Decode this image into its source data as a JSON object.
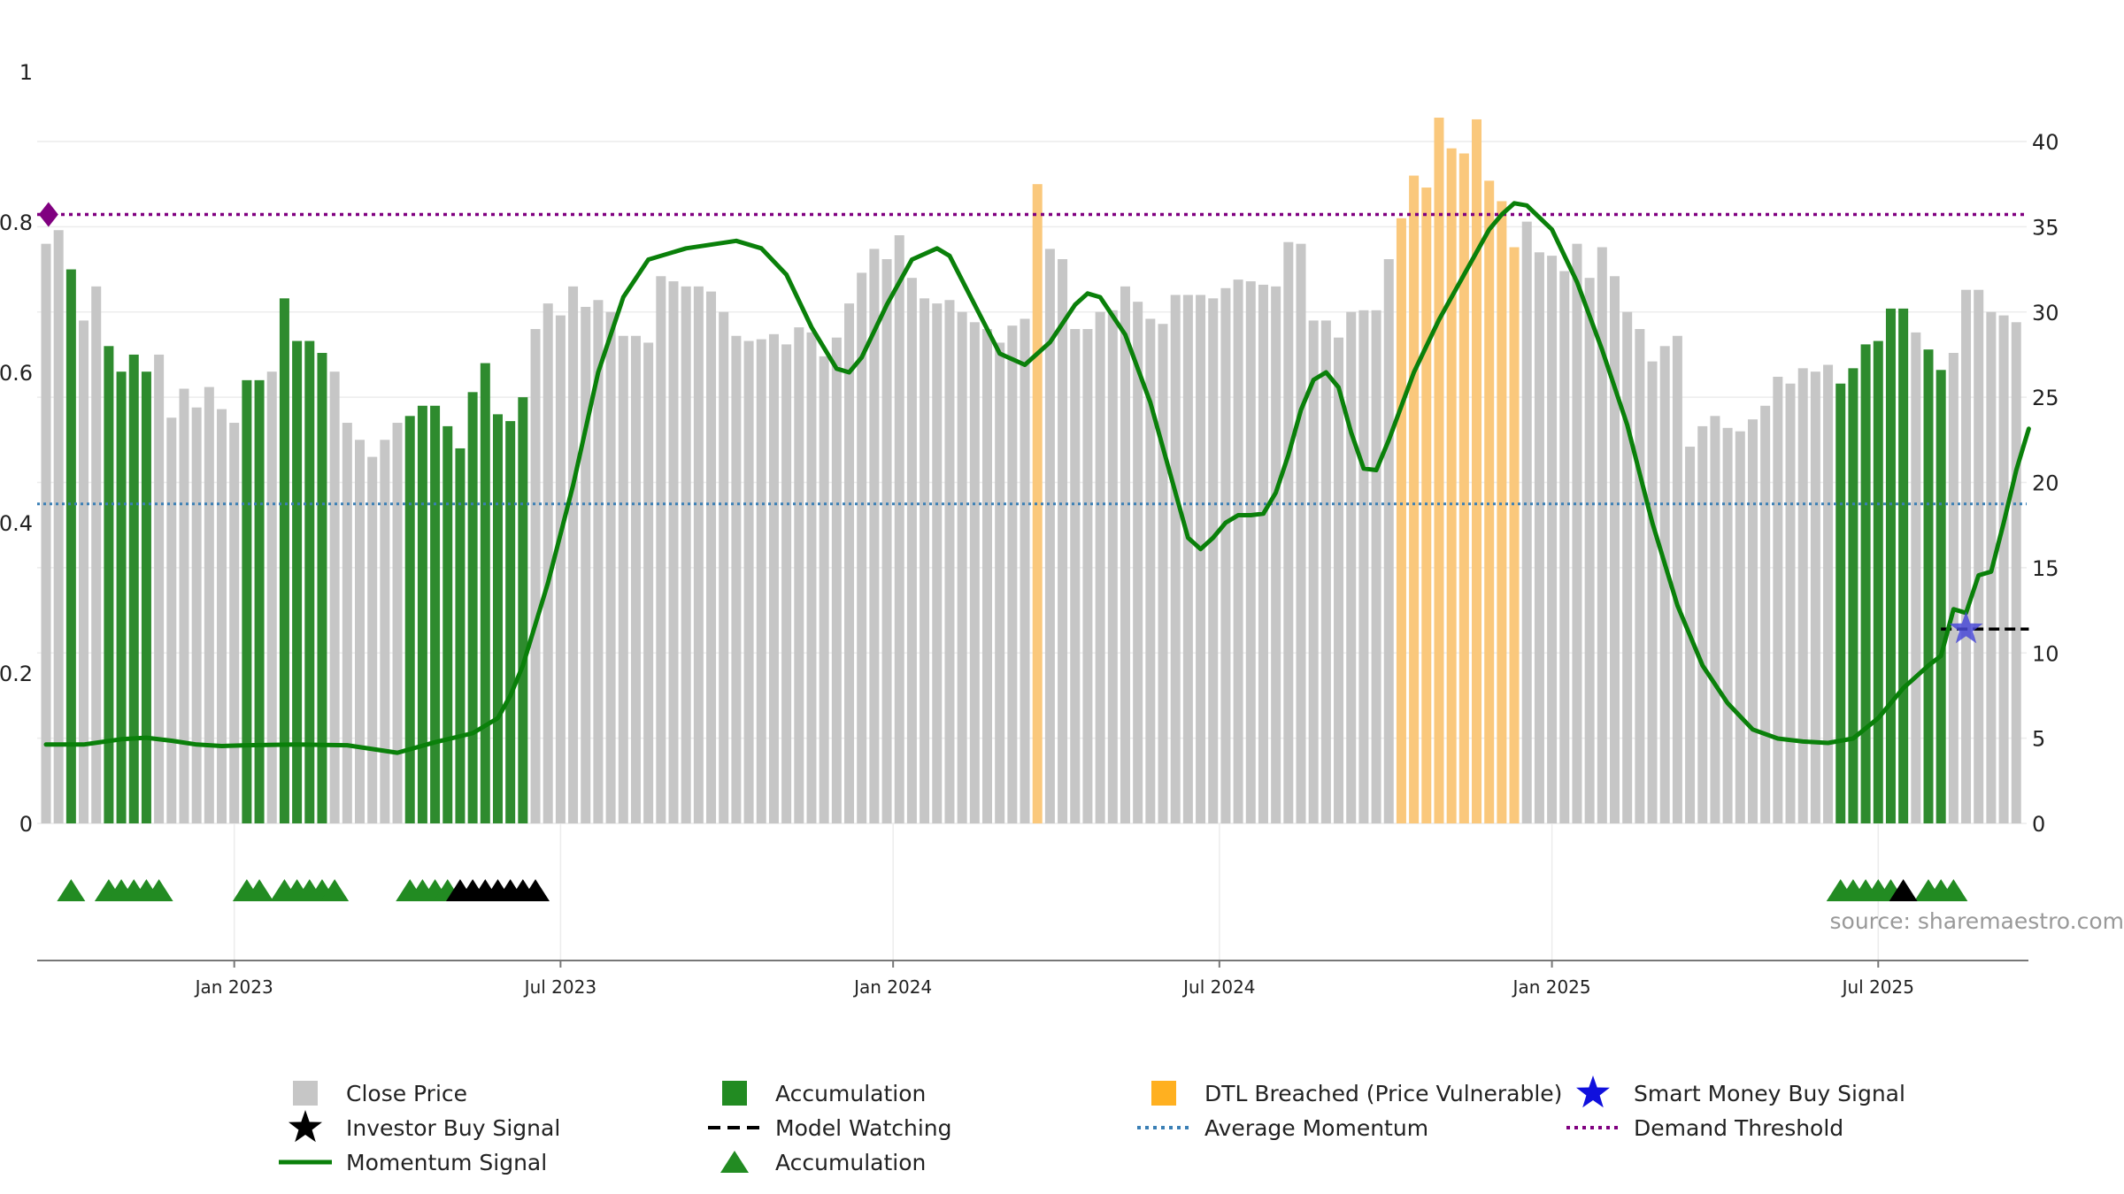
{
  "chart_data": {
    "type": "bar",
    "source": "source: sharemaestro.com",
    "left_axis": {
      "min": 0,
      "max": 1,
      "ticks": [
        "0",
        "0.2",
        "0.4",
        "0.6",
        "0.8",
        "1"
      ]
    },
    "right_axis": {
      "min": 0,
      "max": 42,
      "ticks": [
        "0",
        "5",
        "10",
        "15",
        "20",
        "25",
        "30",
        "35",
        "40"
      ]
    },
    "x_ticks": [
      {
        "label": "Jan 2023",
        "week": 15
      },
      {
        "label": "Jul 2023",
        "week": 41
      },
      {
        "label": "Jan 2024",
        "week": 67.5
      },
      {
        "label": "Jul 2024",
        "week": 93.5
      },
      {
        "label": "Jan 2025",
        "week": 120
      },
      {
        "label": "Jul 2025",
        "week": 146
      }
    ],
    "close_price": [
      34,
      34.8,
      32.5,
      29.5,
      31.5,
      28,
      26.5,
      27.5,
      26.5,
      27.5,
      23.8,
      25.5,
      24.4,
      25.6,
      24.3,
      23.5,
      26,
      26,
      26.5,
      30.8,
      28.3,
      28.3,
      27.6,
      26.5,
      23.5,
      22.5,
      21.5,
      22.5,
      23.5,
      23.9,
      24.5,
      24.5,
      23.3,
      22,
      25.3,
      27,
      24,
      23.6,
      25,
      29,
      30.5,
      29.8,
      31.5,
      30.3,
      30.7,
      30,
      28.6,
      28.6,
      28.2,
      32.1,
      31.8,
      31.5,
      31.5,
      31.2,
      30,
      28.6,
      28.3,
      28.4,
      28.7,
      28.1,
      29.1,
      28.8,
      27.4,
      28.5,
      30.5,
      32.3,
      33.7,
      33.1,
      34.5,
      32,
      30.8,
      30.5,
      30.7,
      30,
      29.4,
      29,
      28.2,
      29.2,
      29.6,
      37.5,
      33.7,
      33.1,
      29,
      29,
      30,
      30.1,
      31.5,
      30.6,
      29.6,
      29.3,
      31,
      31,
      31,
      30.8,
      31.4,
      31.9,
      31.8,
      31.6,
      31.5,
      34.1,
      34,
      29.5,
      29.5,
      28.5,
      30,
      30.1,
      30.1,
      33.1,
      35.5,
      38,
      37.3,
      41.4,
      39.6,
      39.3,
      41.3,
      37.7,
      36.5,
      33.8,
      35.3,
      33.5,
      33.3,
      32.4,
      34,
      32,
      33.8,
      32.1,
      30,
      29,
      27.1,
      28,
      28.6,
      22.1,
      23.3,
      23.9,
      23.2,
      23,
      23.7,
      24.5,
      26.2,
      25.8,
      26.7,
      26.5,
      26.9,
      25.8,
      26.7,
      28.1,
      28.3,
      30.2,
      30.2,
      28.8,
      27.8,
      26.6,
      27.6,
      31.3,
      31.3,
      30,
      29.8,
      29.4
    ],
    "series_styles": [
      {
        "name": "Close Price",
        "color": "#c6c6c6"
      },
      {
        "name": "Accumulation",
        "color": "#2e8b2e"
      },
      {
        "name": "DTL Breached (Price Vulnerable)",
        "color": "#fac87c"
      }
    ],
    "accumulation_weeks": [
      2,
      5,
      6,
      7,
      8,
      16,
      17,
      19,
      20,
      21,
      22,
      29,
      30,
      31,
      32,
      33,
      34,
      35,
      36,
      37,
      38,
      143,
      144,
      145,
      146,
      147,
      148,
      150,
      151
    ],
    "dtl_breached_weeks": [
      79,
      108,
      109,
      110,
      111,
      112,
      113,
      114,
      115,
      116,
      117
    ],
    "momentum_signal": [
      [
        0,
        0.105
      ],
      [
        3,
        0.105
      ],
      [
        6,
        0.112
      ],
      [
        8,
        0.114
      ],
      [
        10,
        0.11
      ],
      [
        12,
        0.105
      ],
      [
        14,
        0.103
      ],
      [
        16,
        0.104
      ],
      [
        20,
        0.105
      ],
      [
        24,
        0.104
      ],
      [
        28,
        0.094
      ],
      [
        31,
        0.108
      ],
      [
        34,
        0.12
      ],
      [
        36,
        0.14
      ],
      [
        37,
        0.17
      ],
      [
        38,
        0.21
      ],
      [
        40,
        0.32
      ],
      [
        42,
        0.45
      ],
      [
        44,
        0.6
      ],
      [
        46,
        0.7
      ],
      [
        48,
        0.75
      ],
      [
        51,
        0.765
      ],
      [
        55,
        0.775
      ],
      [
        57,
        0.765
      ],
      [
        59,
        0.73
      ],
      [
        61,
        0.66
      ],
      [
        63,
        0.605
      ],
      [
        64,
        0.6
      ],
      [
        65,
        0.62
      ],
      [
        67,
        0.69
      ],
      [
        69,
        0.75
      ],
      [
        71,
        0.765
      ],
      [
        72,
        0.755
      ],
      [
        74,
        0.69
      ],
      [
        76,
        0.625
      ],
      [
        78,
        0.61
      ],
      [
        80,
        0.64
      ],
      [
        82,
        0.69
      ],
      [
        83,
        0.705
      ],
      [
        84,
        0.7
      ],
      [
        86,
        0.65
      ],
      [
        88,
        0.56
      ],
      [
        90,
        0.44
      ],
      [
        91,
        0.38
      ],
      [
        92,
        0.365
      ],
      [
        93,
        0.38
      ],
      [
        94,
        0.4
      ],
      [
        95,
        0.41
      ],
      [
        96,
        0.41
      ],
      [
        97,
        0.412
      ],
      [
        98,
        0.44
      ],
      [
        99,
        0.49
      ],
      [
        100,
        0.55
      ],
      [
        101,
        0.59
      ],
      [
        102,
        0.6
      ],
      [
        103,
        0.58
      ],
      [
        104,
        0.52
      ],
      [
        105,
        0.472
      ],
      [
        106,
        0.47
      ],
      [
        107,
        0.51
      ],
      [
        109,
        0.6
      ],
      [
        111,
        0.67
      ],
      [
        113,
        0.73
      ],
      [
        115,
        0.79
      ],
      [
        116,
        0.81
      ],
      [
        117,
        0.825
      ],
      [
        118,
        0.822
      ],
      [
        120,
        0.79
      ],
      [
        122,
        0.72
      ],
      [
        124,
        0.63
      ],
      [
        126,
        0.53
      ],
      [
        128,
        0.4
      ],
      [
        130,
        0.29
      ],
      [
        132,
        0.21
      ],
      [
        134,
        0.16
      ],
      [
        136,
        0.125
      ],
      [
        138,
        0.113
      ],
      [
        140,
        0.109
      ],
      [
        142,
        0.107
      ],
      [
        144,
        0.113
      ],
      [
        146,
        0.14
      ],
      [
        148,
        0.18
      ],
      [
        150,
        0.21
      ],
      [
        151,
        0.223
      ],
      [
        152,
        0.285
      ],
      [
        153,
        0.28
      ],
      [
        154,
        0.33
      ],
      [
        155,
        0.335
      ],
      [
        156,
        0.4
      ],
      [
        157,
        0.47
      ],
      [
        158,
        0.525
      ]
    ],
    "momentum_color": "#0a800a",
    "average_momentum": 0.425,
    "demand_threshold": 0.81,
    "model_watching": {
      "from_week": 151,
      "to_week": 158,
      "value": 11.4
    },
    "smart_money_buy_signal": {
      "week": 153,
      "value": 11.4,
      "color": "#4a4ad6"
    },
    "demand_marker": {
      "week": 0.2,
      "value": 0.81,
      "color": "#800080"
    },
    "signal_triangles": {
      "accumulation": [
        2,
        5,
        6,
        7,
        8,
        9,
        16,
        17,
        19,
        20,
        21,
        22,
        23,
        29,
        30,
        31,
        32,
        143,
        144,
        145,
        146,
        147,
        150,
        151,
        152
      ],
      "investor_buy": [
        33,
        34,
        35,
        36,
        37,
        38,
        39,
        148
      ]
    },
    "legend": [
      {
        "label": "Close Price",
        "symbol": "square",
        "color": "#c6c6c6"
      },
      {
        "label": "Accumulation",
        "symbol": "square",
        "color": "#228b22"
      },
      {
        "label": "DTL Breached (Price Vulnerable)",
        "symbol": "square",
        "color": "#ffb020"
      },
      {
        "label": "Smart Money Buy Signal",
        "symbol": "star",
        "color": "#1010dd"
      },
      {
        "label": "Investor Buy Signal",
        "symbol": "star",
        "color": "#000000"
      },
      {
        "label": "Model Watching",
        "symbol": "dash",
        "color": "#000000"
      },
      {
        "label": "Average Momentum",
        "symbol": "dots",
        "color": "#3a7fb5"
      },
      {
        "label": "Demand Threshold",
        "symbol": "dots",
        "color": "#800080"
      },
      {
        "label": "Momentum Signal",
        "symbol": "line",
        "color": "#0a800a"
      },
      {
        "label": "Accumulation",
        "symbol": "triangle",
        "color": "#228b22"
      }
    ]
  }
}
